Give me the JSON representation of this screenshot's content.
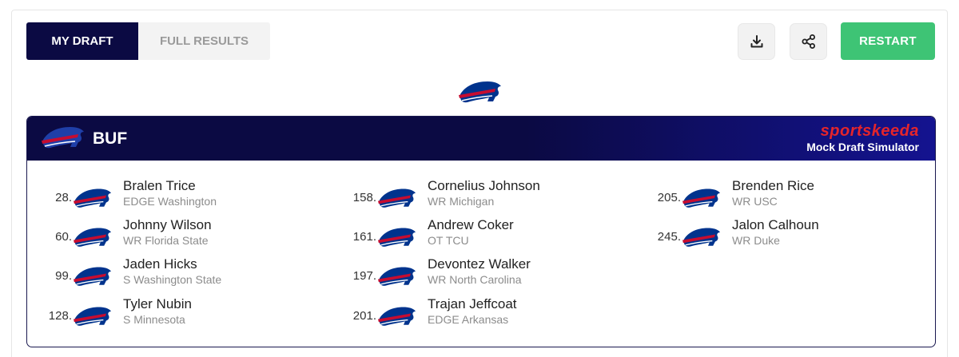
{
  "tabs": [
    {
      "label": "MY DRAFT",
      "active": true
    },
    {
      "label": "FULL RESULTS",
      "active": false
    }
  ],
  "actions": {
    "download_icon": "download-icon",
    "share_icon": "share-icon",
    "restart_label": "RESTART"
  },
  "card": {
    "team": "BUF",
    "brand_name": "sportskeeda",
    "brand_sub": "Mock Draft Simulator"
  },
  "colors": {
    "navy": "#0b0a43",
    "restart_green": "#3ec475",
    "brand_red": "#e4252b",
    "bills_blue": "#00338d",
    "bills_red": "#c60c30"
  },
  "picks": [
    {
      "number": "28.",
      "name": "Bralen Trice",
      "position": "EDGE Washington"
    },
    {
      "number": "60.",
      "name": "Johnny Wilson",
      "position": "WR Florida State"
    },
    {
      "number": "99.",
      "name": "Jaden Hicks",
      "position": "S Washington State"
    },
    {
      "number": "128.",
      "name": "Tyler Nubin",
      "position": "S Minnesota"
    },
    {
      "number": "158.",
      "name": "Cornelius Johnson",
      "position": "WR Michigan"
    },
    {
      "number": "161.",
      "name": "Andrew Coker",
      "position": "OT TCU"
    },
    {
      "number": "197.",
      "name": "Devontez Walker",
      "position": "WR North Carolina"
    },
    {
      "number": "201.",
      "name": "Trajan Jeffcoat",
      "position": "EDGE Arkansas"
    },
    {
      "number": "205.",
      "name": "Brenden Rice",
      "position": "WR USC"
    },
    {
      "number": "245.",
      "name": "Jalon Calhoun",
      "position": "WR Duke"
    }
  ]
}
